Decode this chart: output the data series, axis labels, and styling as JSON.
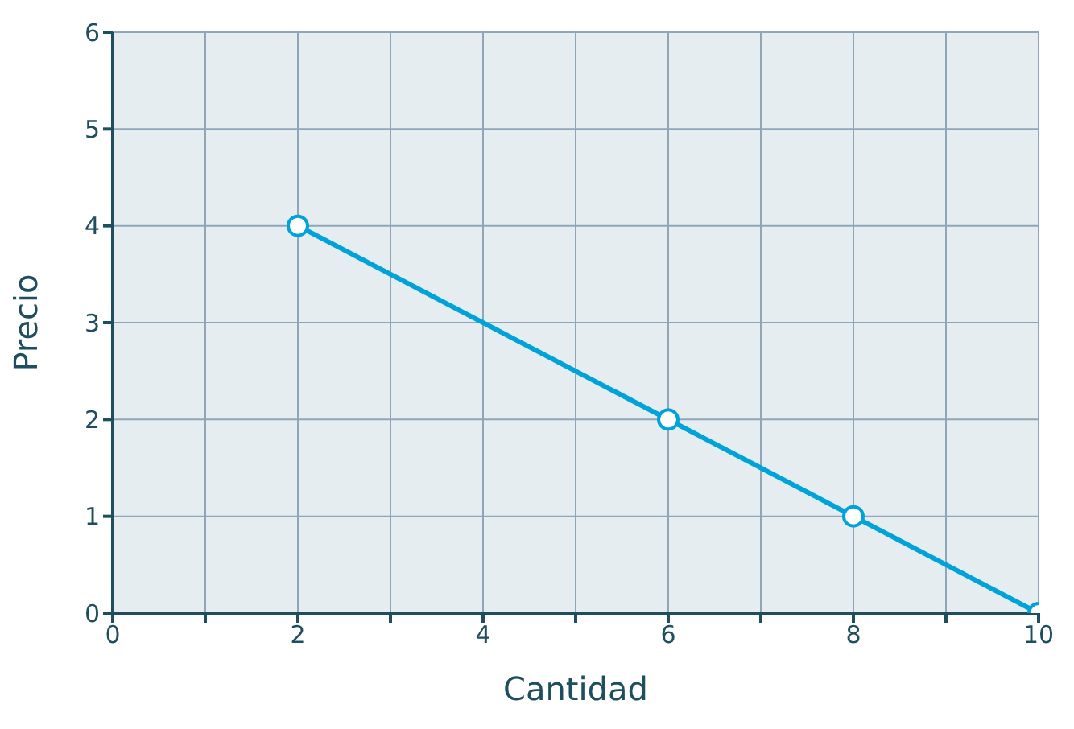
{
  "chart_data": {
    "type": "line",
    "xlabel": "Cantidad",
    "ylabel": "Precio",
    "x": [
      2,
      6,
      8,
      10
    ],
    "series": [
      {
        "color": "#00a3d9",
        "values": [
          4,
          2,
          1,
          0
        ]
      }
    ],
    "xlim": [
      0,
      10
    ],
    "xticks": [
      0,
      {
        "value": 1,
        "label": null
      },
      2,
      {
        "value": 3,
        "label": null
      },
      4,
      {
        "value": 5,
        "label": null
      },
      6,
      {
        "value": 7,
        "label": null
      },
      8,
      {
        "value": 9,
        "label": null
      },
      10
    ],
    "ylim": [
      0,
      6
    ],
    "yticks": [
      0,
      1,
      2,
      3,
      4,
      5,
      6
    ],
    "grid": true,
    "marker": "circle",
    "line_style": "solid"
  }
}
